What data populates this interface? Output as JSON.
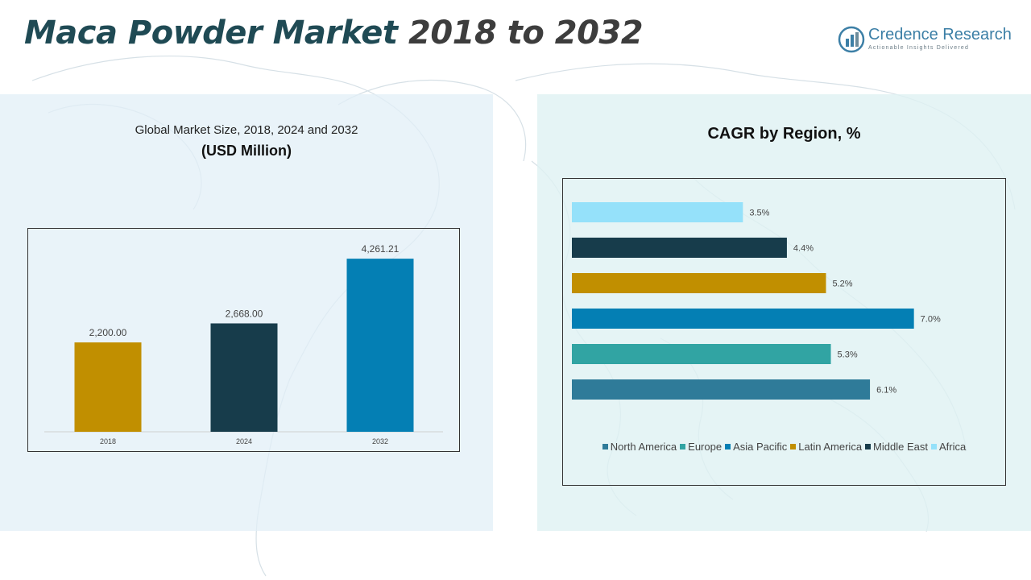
{
  "header": {
    "title_part1": "Maca Powder Market",
    "title_part2": "2018 to 2032"
  },
  "logo": {
    "name": "Credence Research",
    "tagline": "Actionable Insights Delivered"
  },
  "left_panel": {
    "subtitle": "Global Market Size, 2018, 2024 and 2032",
    "unit": "(USD Million)"
  },
  "right_panel": {
    "title": "CAGR by Region, %"
  },
  "chart_data": [
    {
      "type": "bar",
      "title": "Global Market Size, 2018, 2024 and 2032",
      "ylabel": "(USD Million)",
      "categories": [
        "2018",
        "2024",
        "2032"
      ],
      "values": [
        2200.0,
        2668.0,
        4261.21
      ],
      "value_labels": [
        "2,200.00",
        "2,668.00",
        "4,261.21"
      ],
      "colors": [
        "#c18f00",
        "#173c4b",
        "#047fb4"
      ],
      "ylim": [
        0,
        4700
      ],
      "grid": false,
      "legend": "none"
    },
    {
      "type": "bar",
      "orientation": "horizontal",
      "title": "CAGR by Region, %",
      "categories": [
        "Africa",
        "Middle East",
        "Latin America",
        "Asia Pacific",
        "Europe",
        "North America"
      ],
      "values": [
        3.5,
        4.4,
        5.2,
        7.0,
        5.3,
        6.1
      ],
      "value_labels": [
        "3.5%",
        "4.4%",
        "5.2%",
        "7.0%",
        "5.3%",
        "6.1%"
      ],
      "colors": [
        "#95e1fa",
        "#173c4b",
        "#c18f00",
        "#047fb4",
        "#31a4a3",
        "#2f7b99"
      ],
      "xlim": [
        0,
        7.5
      ],
      "grid": false,
      "legend": "bottom",
      "legend_order": [
        "North America",
        "Europe",
        "Asia Pacific",
        "Latin America",
        "Middle East",
        "Africa"
      ]
    }
  ]
}
